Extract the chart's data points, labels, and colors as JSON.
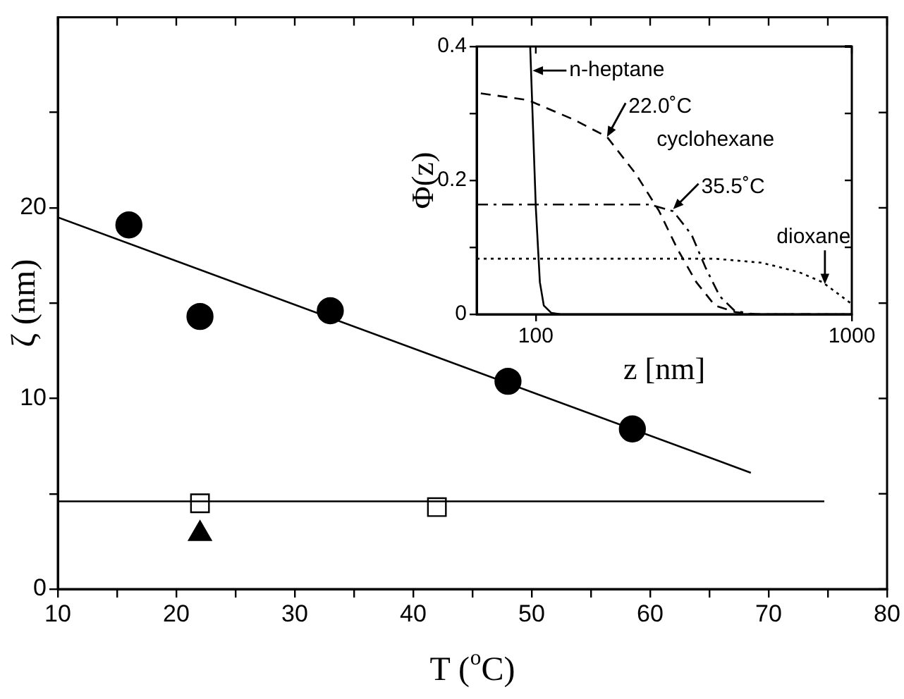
{
  "chart_data": [
    {
      "type": "scatter",
      "xlabel": "T ($^{o}$C)",
      "ylabel": "ζ (nm)",
      "xlim": [
        10,
        80
      ],
      "ylim": [
        0,
        30
      ],
      "xticks": [
        10,
        {
          "value": 15,
          "label": null
        },
        20,
        {
          "value": 25,
          "label": null
        },
        30,
        {
          "value": 35,
          "label": null
        },
        40,
        {
          "value": 45,
          "label": null
        },
        50,
        {
          "value": 55,
          "label": null
        },
        60,
        {
          "value": 65,
          "label": null
        },
        70,
        {
          "value": 75,
          "label": null
        },
        80
      ],
      "yticks": [
        0,
        {
          "value": 5,
          "label": null
        },
        10,
        {
          "value": 15,
          "label": null
        },
        20,
        {
          "value": 25,
          "label": null
        }
      ],
      "grid": false,
      "legend": false,
      "series": [
        {
          "marker": "circle",
          "color": "#000000",
          "x": [
            16,
            22,
            33,
            48,
            58.5
          ],
          "values": [
            19.1,
            14.3,
            14.6,
            10.9,
            8.4
          ]
        },
        {
          "type": "line",
          "marker": "none",
          "line_style": "solid",
          "color": "#000000",
          "x": [
            10,
            68.5
          ],
          "values": [
            19.5,
            6.1
          ]
        },
        {
          "type": "line",
          "marker": "none",
          "line_style": "solid",
          "color": "#000000",
          "x": [
            10,
            74.7
          ],
          "values": [
            4.6,
            4.6
          ]
        },
        {
          "marker": "square",
          "color": "#000000",
          "x": [
            22,
            42
          ],
          "values": [
            4.5,
            4.3
          ]
        },
        {
          "marker": "triangle",
          "color": "#000000",
          "x": [
            22
          ],
          "values": [
            2.9
          ]
        }
      ]
    },
    {
      "type": "line",
      "xlabel": "z [nm]",
      "ylabel": "Φ(z)",
      "log": "x",
      "xlim": [
        65,
        1000
      ],
      "ylim": [
        0,
        0.4
      ],
      "xticks": [
        100,
        1000
      ],
      "yticks": [
        0,
        {
          "value": 0.1,
          "label": null
        },
        0.2,
        {
          "value": 0.3,
          "label": null
        },
        0.4
      ],
      "grid": false,
      "legend": false,
      "annotations": [
        {
          "text": "n-heptane",
          "x": 97.7,
          "y": 0.364
        },
        {
          "text": "22.0˚C",
          "x": 168,
          "y": 0.265
        },
        {
          "text": "35.5˚C",
          "x": 272,
          "y": 0.157
        },
        {
          "text": "dioxane",
          "x": 822,
          "y": 0.045
        },
        "cyclohexane"
      ],
      "series": [
        {
          "line_style": "solid",
          "color": "#000000",
          "x": [
            96,
            100,
            103,
            106,
            112,
            120,
            1000
          ],
          "values": [
            0.4,
            0.16,
            0.048,
            0.013,
            0.002,
            0,
            0
          ]
        },
        {
          "line_style": "dashed",
          "color": "#000000",
          "x": [
            67,
            94.4,
            133,
            168,
            207,
            245,
            281,
            322,
            369,
            430,
            500,
            1000
          ],
          "values": [
            0.33,
            0.32,
            0.29,
            0.265,
            0.21,
            0.155,
            0.097,
            0.048,
            0.013,
            0.003,
            0,
            0
          ]
        },
        {
          "line_style": "dashdot",
          "color": "#000000",
          "x": [
            65,
            229,
            272,
            311,
            345,
            382,
            424,
            480,
            1000
          ],
          "values": [
            0.164,
            0.164,
            0.154,
            0.119,
            0.069,
            0.027,
            0.006,
            0,
            0
          ]
        },
        {
          "line_style": "dotted",
          "color": "#000000",
          "x": [
            65,
            369,
            519,
            680,
            807,
            989
          ],
          "values": [
            0.083,
            0.083,
            0.077,
            0.063,
            0.048,
            0.017
          ]
        }
      ]
    }
  ]
}
